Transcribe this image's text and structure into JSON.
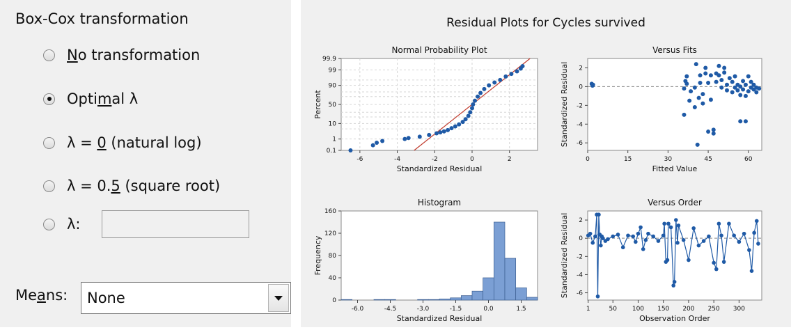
{
  "dialog": {
    "group_title": "Box-Cox transformation",
    "options": [
      {
        "pre": "",
        "ul": "N",
        "post": "o transformation",
        "selected": false
      },
      {
        "pre": "Opti",
        "ul": "m",
        "post": "al λ",
        "selected": true
      },
      {
        "pre": "λ = ",
        "ul": "0",
        "post": " (natural log)",
        "selected": false
      },
      {
        "pre": "λ = 0.",
        "ul": "5",
        "post": " (square root)",
        "selected": false
      },
      {
        "pre": "λ:",
        "ul": "",
        "post": "",
        "selected": false
      }
    ],
    "lambda_value": "",
    "means_label_pre": "Me",
    "means_label_ul": "a",
    "means_label_post": "ns:",
    "means_value": "None"
  },
  "plots": {
    "main_title": "Residual Plots for Cycles survived",
    "colors": {
      "points": "#1f5aa6",
      "bars": "#7b9fd4",
      "fit_line": "#c0392b",
      "panel": "#ffffff",
      "bg": "#f0f0f0"
    },
    "probability": {
      "title": "Normal Probability Plot",
      "xlabel": "Standardized Residual",
      "ylabel": "Percent",
      "xticks": [
        "-6",
        "-4",
        "-2",
        "0",
        "2"
      ],
      "yticks": [
        "0.1",
        "1",
        "10",
        "50",
        "90",
        "99",
        "99.9"
      ]
    },
    "fits": {
      "title": "Versus Fits",
      "xlabel": "Fitted Value",
      "ylabel": "Standardized Residual",
      "xticks": [
        "0",
        "15",
        "30",
        "45",
        "60"
      ],
      "yticks": [
        "2",
        "0",
        "-2",
        "-4",
        "-6"
      ]
    },
    "histogram": {
      "title": "Histogram",
      "xlabel": "Standardized Residual",
      "ylabel": "Frequency",
      "xticks": [
        "-6.0",
        "-4.5",
        "-3.0",
        "-1.5",
        "0.0",
        "1.5"
      ],
      "yticks": [
        "0",
        "40",
        "80",
        "120",
        "160"
      ]
    },
    "order": {
      "title": "Versus Order",
      "xlabel": "Observation Order",
      "ylabel": "Standardized Residual",
      "xticks": [
        "1",
        "50",
        "100",
        "150",
        "200",
        "250",
        "300"
      ],
      "yticks": [
        "2",
        "0",
        "-2",
        "-4",
        "-6"
      ]
    }
  },
  "chart_data": [
    {
      "type": "scatter",
      "title": "Normal Probability Plot",
      "xlabel": "Standardized Residual",
      "ylabel": "Percent",
      "xlim": [
        -7,
        3.5
      ],
      "y_scale": "normal-probability",
      "ylim": [
        0.1,
        99.9
      ],
      "points": [
        [
          -6.5,
          0.1
        ],
        [
          -5.3,
          0.3
        ],
        [
          -5.1,
          0.5
        ],
        [
          -4.8,
          0.7
        ],
        [
          -3.6,
          1.0
        ],
        [
          -3.4,
          1.2
        ],
        [
          -2.8,
          1.5
        ],
        [
          -2.3,
          2.0
        ],
        [
          -1.9,
          2.6
        ],
        [
          -1.7,
          3.0
        ],
        [
          -1.5,
          3.5
        ],
        [
          -1.3,
          4.2
        ],
        [
          -1.1,
          5.5
        ],
        [
          -0.9,
          7
        ],
        [
          -0.7,
          9
        ],
        [
          -0.5,
          12
        ],
        [
          -0.35,
          16
        ],
        [
          -0.2,
          22
        ],
        [
          -0.1,
          30
        ],
        [
          0,
          40
        ],
        [
          0.05,
          50
        ],
        [
          0.15,
          60
        ],
        [
          0.3,
          70
        ],
        [
          0.45,
          78
        ],
        [
          0.65,
          85
        ],
        [
          0.9,
          90
        ],
        [
          1.2,
          93
        ],
        [
          1.5,
          95
        ],
        [
          1.8,
          97
        ],
        [
          2.1,
          98
        ],
        [
          2.4,
          98.7
        ],
        [
          2.6,
          99.2
        ],
        [
          2.7,
          99.5
        ]
      ],
      "fit_line": [
        [
          -3.1,
          0.1
        ],
        [
          3.1,
          99.9
        ]
      ]
    },
    {
      "type": "scatter",
      "title": "Versus Fits",
      "xlabel": "Fitted Value",
      "ylabel": "Standardized Residual",
      "xlim": [
        0,
        65
      ],
      "ylim": [
        -6.8,
        3
      ],
      "reference_line": 0,
      "points": [
        [
          1.5,
          0.3
        ],
        [
          1.8,
          0.1
        ],
        [
          2,
          0.2
        ],
        [
          36,
          -3
        ],
        [
          36,
          -0.2
        ],
        [
          36.5,
          0.6
        ],
        [
          37,
          1.1
        ],
        [
          37,
          0.3
        ],
        [
          38,
          -1.5
        ],
        [
          38.5,
          -0.5
        ],
        [
          40,
          -0.1
        ],
        [
          40,
          -2.2
        ],
        [
          40.5,
          2.4
        ],
        [
          41,
          -6.2
        ],
        [
          41.5,
          -1.2
        ],
        [
          42,
          1.2
        ],
        [
          42,
          0.4
        ],
        [
          43,
          -0.8
        ],
        [
          43,
          -1.8
        ],
        [
          44,
          1.4
        ],
        [
          44,
          2
        ],
        [
          45,
          -4.8
        ],
        [
          45,
          0.4
        ],
        [
          46,
          -1.4
        ],
        [
          46,
          1.2
        ],
        [
          47,
          -5
        ],
        [
          47,
          -4.6
        ],
        [
          48,
          0.5
        ],
        [
          48,
          1.4
        ],
        [
          49,
          2.2
        ],
        [
          49,
          1.2
        ],
        [
          50,
          -0.1
        ],
        [
          50,
          0.7
        ],
        [
          51,
          1.5
        ],
        [
          51,
          2
        ],
        [
          52,
          -0.4
        ],
        [
          52,
          0.2
        ],
        [
          53,
          0.9
        ],
        [
          54,
          0.5
        ],
        [
          54,
          -0.6
        ],
        [
          55,
          1.1
        ],
        [
          55,
          -0.1
        ],
        [
          56,
          0.2
        ],
        [
          56,
          -0.4
        ],
        [
          57,
          0
        ],
        [
          57,
          -0.9
        ],
        [
          57,
          -3.7
        ],
        [
          58,
          0.6
        ],
        [
          58,
          -0.3
        ],
        [
          59,
          0.2
        ],
        [
          59,
          -1
        ],
        [
          59,
          -3.7
        ],
        [
          60,
          1.1
        ],
        [
          60,
          -0.5
        ],
        [
          61,
          0.5
        ],
        [
          61,
          -0.1
        ],
        [
          62,
          -0.3
        ],
        [
          62,
          0.2
        ],
        [
          63,
          -0.6
        ],
        [
          63,
          -0.1
        ],
        [
          64,
          -0.2
        ]
      ]
    },
    {
      "type": "bar",
      "title": "Histogram",
      "xlabel": "Standardized Residual",
      "ylabel": "Frequency",
      "xlim": [
        -6.75,
        2.25
      ],
      "ylim": [
        0,
        160
      ],
      "bin_width": 0.5,
      "bins_start": [
        -6.75,
        -6.25,
        -5.75,
        -5.25,
        -4.75,
        -4.25,
        -3.75,
        -3.25,
        -2.75,
        -2.25,
        -1.75,
        -1.25,
        -0.75,
        -0.25,
        0.25,
        0.75,
        1.25,
        1.75
      ],
      "values": [
        1,
        0,
        0,
        1,
        1,
        0,
        0,
        1,
        1,
        2,
        4,
        8,
        16,
        40,
        140,
        75,
        22,
        5
      ]
    },
    {
      "type": "line",
      "title": "Versus Order",
      "xlabel": "Observation Order",
      "ylabel": "Standardized Residual",
      "xlim": [
        0,
        345
      ],
      "ylim": [
        -6.8,
        3
      ],
      "reference_line": 0,
      "x": [
        1,
        5,
        10,
        15,
        18,
        20,
        22,
        24,
        26,
        28,
        30,
        35,
        40,
        50,
        60,
        70,
        80,
        90,
        95,
        100,
        105,
        110,
        115,
        120,
        130,
        140,
        150,
        152,
        155,
        158,
        160,
        165,
        170,
        172,
        175,
        178,
        180,
        190,
        200,
        210,
        220,
        230,
        240,
        250,
        255,
        260,
        265,
        270,
        280,
        290,
        300,
        310,
        320,
        325,
        330,
        335,
        338
      ],
      "values": [
        0.3,
        0.5,
        -0.5,
        0.2,
        2.6,
        -6.4,
        2.6,
        0.4,
        -0.8,
        0.2,
        0,
        -0.3,
        -0.1,
        0.2,
        0.4,
        -1,
        0.3,
        0.2,
        -0.4,
        0.5,
        1.2,
        -1.2,
        -0.2,
        0.5,
        0.2,
        -0.3,
        0.3,
        1.6,
        -2.6,
        -2.4,
        1.6,
        1.2,
        -5.2,
        -4.8,
        2.0,
        -0.5,
        1.4,
        -0.2,
        -2.4,
        1.1,
        -0.8,
        -0.3,
        0.2,
        -2.7,
        -3.4,
        1.6,
        0.3,
        -2.6,
        1.6,
        0.3,
        -0.4,
        0.5,
        -1.3,
        -3.6,
        0.6,
        1.9,
        -0.6
      ]
    }
  ]
}
